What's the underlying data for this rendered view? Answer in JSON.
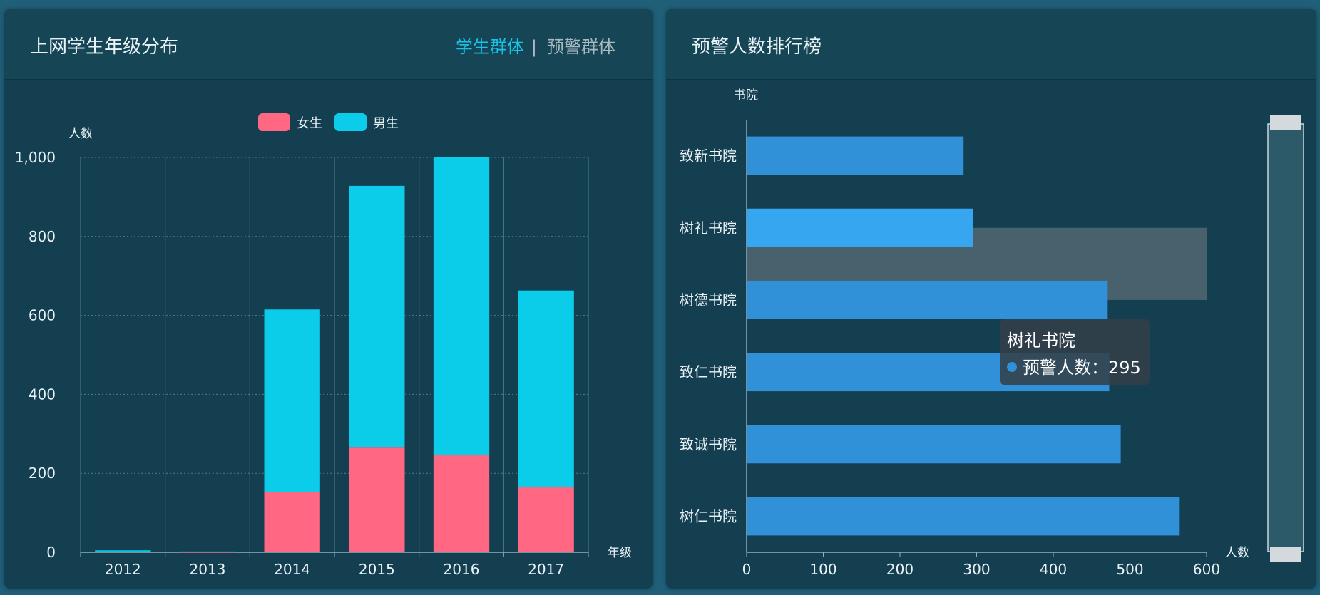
{
  "left_panel": {
    "title": "上网学生年级分布",
    "tabs": [
      {
        "label": "学生群体",
        "active": true
      },
      {
        "label": "预警群体",
        "active": false
      }
    ],
    "tab_separator": "|"
  },
  "right_panel": {
    "title": "预警人数排行榜"
  },
  "tooltip": {
    "title": "树礼书院",
    "series_label": "预警人数",
    "separator": "：",
    "value": "295"
  },
  "chart_data": [
    {
      "type": "bar",
      "stacked": true,
      "categories": [
        "2012",
        "2013",
        "2014",
        "2015",
        "2016",
        "2017"
      ],
      "series": [
        {
          "name": "女生",
          "values": [
            2,
            1,
            152,
            265,
            246,
            166
          ],
          "color": "#ff6783"
        },
        {
          "name": "男生",
          "values": [
            3,
            1,
            463,
            663,
            754,
            497
          ],
          "color": "#0bcdea"
        }
      ],
      "xlabel": "年级",
      "ylabel": "人数",
      "ylim": [
        0,
        1000
      ],
      "yticks": [
        "0",
        "200",
        "400",
        "600",
        "800",
        "1,000"
      ],
      "grid": true,
      "legend": "top-center"
    },
    {
      "type": "bar",
      "orientation": "horizontal",
      "categories": [
        "致新书院",
        "树礼书院",
        "树德书院",
        "致仁书院",
        "致诚书院",
        "树仁书院"
      ],
      "series": [
        {
          "name": "预警人数",
          "values": [
            283,
            295,
            471,
            473,
            488,
            564
          ],
          "color": "#3090d8"
        }
      ],
      "xlabel": "人数",
      "ylabel": "书院",
      "xlim": [
        0,
        600
      ],
      "xticks": [
        "0",
        "100",
        "200",
        "300",
        "400",
        "500",
        "600"
      ],
      "highlighted_category": "树礼书院",
      "grid": false,
      "has_datazoom_slider": true
    }
  ]
}
